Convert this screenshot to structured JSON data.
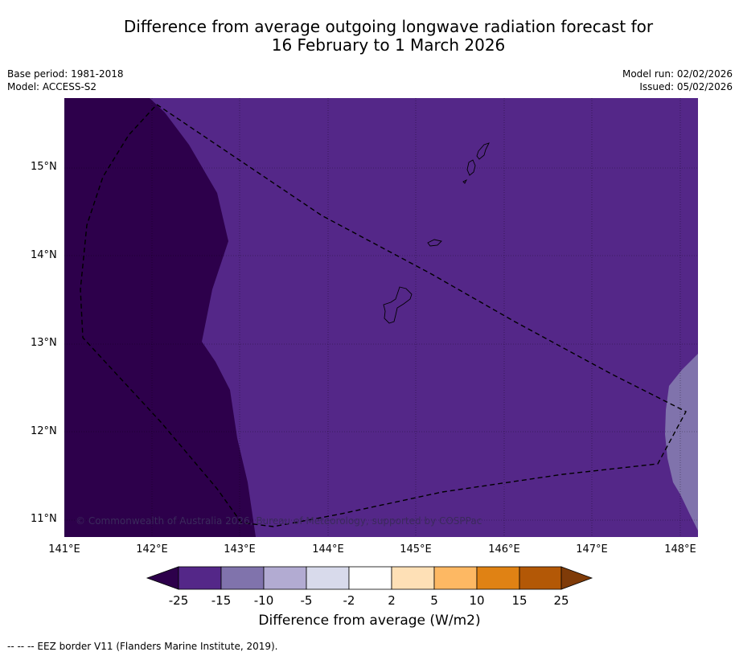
{
  "title": {
    "line1": "Difference from average outgoing longwave radiation forecast for",
    "line2": "16 February to 1 March 2026"
  },
  "meta": {
    "base_period": "Base period: 1981-2018",
    "model": "Model: ACCESS-S2",
    "model_run": "Model run: 02/02/2026",
    "issued": "Issued: 05/02/2026"
  },
  "map": {
    "lat_labels": [
      "15°N",
      "14°N",
      "13°N",
      "12°N",
      "11°N"
    ],
    "lon_labels": [
      "141°E",
      "142°E",
      "143°E",
      "144°E",
      "145°E",
      "146°E",
      "147°E",
      "148°E"
    ],
    "copyright": "© Commonwealth of Australia 2026, Bureau of Meteorology, supported by COSPPac",
    "colors": {
      "deep": "#2d004b",
      "main": "#542788",
      "light": "#8073ac"
    }
  },
  "colorbar": {
    "ticks": [
      "-25",
      "-15",
      "-10",
      "-5",
      "-2",
      "2",
      "5",
      "10",
      "15",
      "25"
    ],
    "colors": [
      "#2d004b",
      "#542788",
      "#8073ac",
      "#b2abd2",
      "#d8daeb",
      "#ffffff",
      "#fee0b6",
      "#fdb863",
      "#e08214",
      "#b35806",
      "#7f3b08"
    ],
    "label": "Difference from average (W/m2)"
  },
  "footnote": "--  --  -- EEZ border V11 (Flanders Marine Institute, 2019)."
}
